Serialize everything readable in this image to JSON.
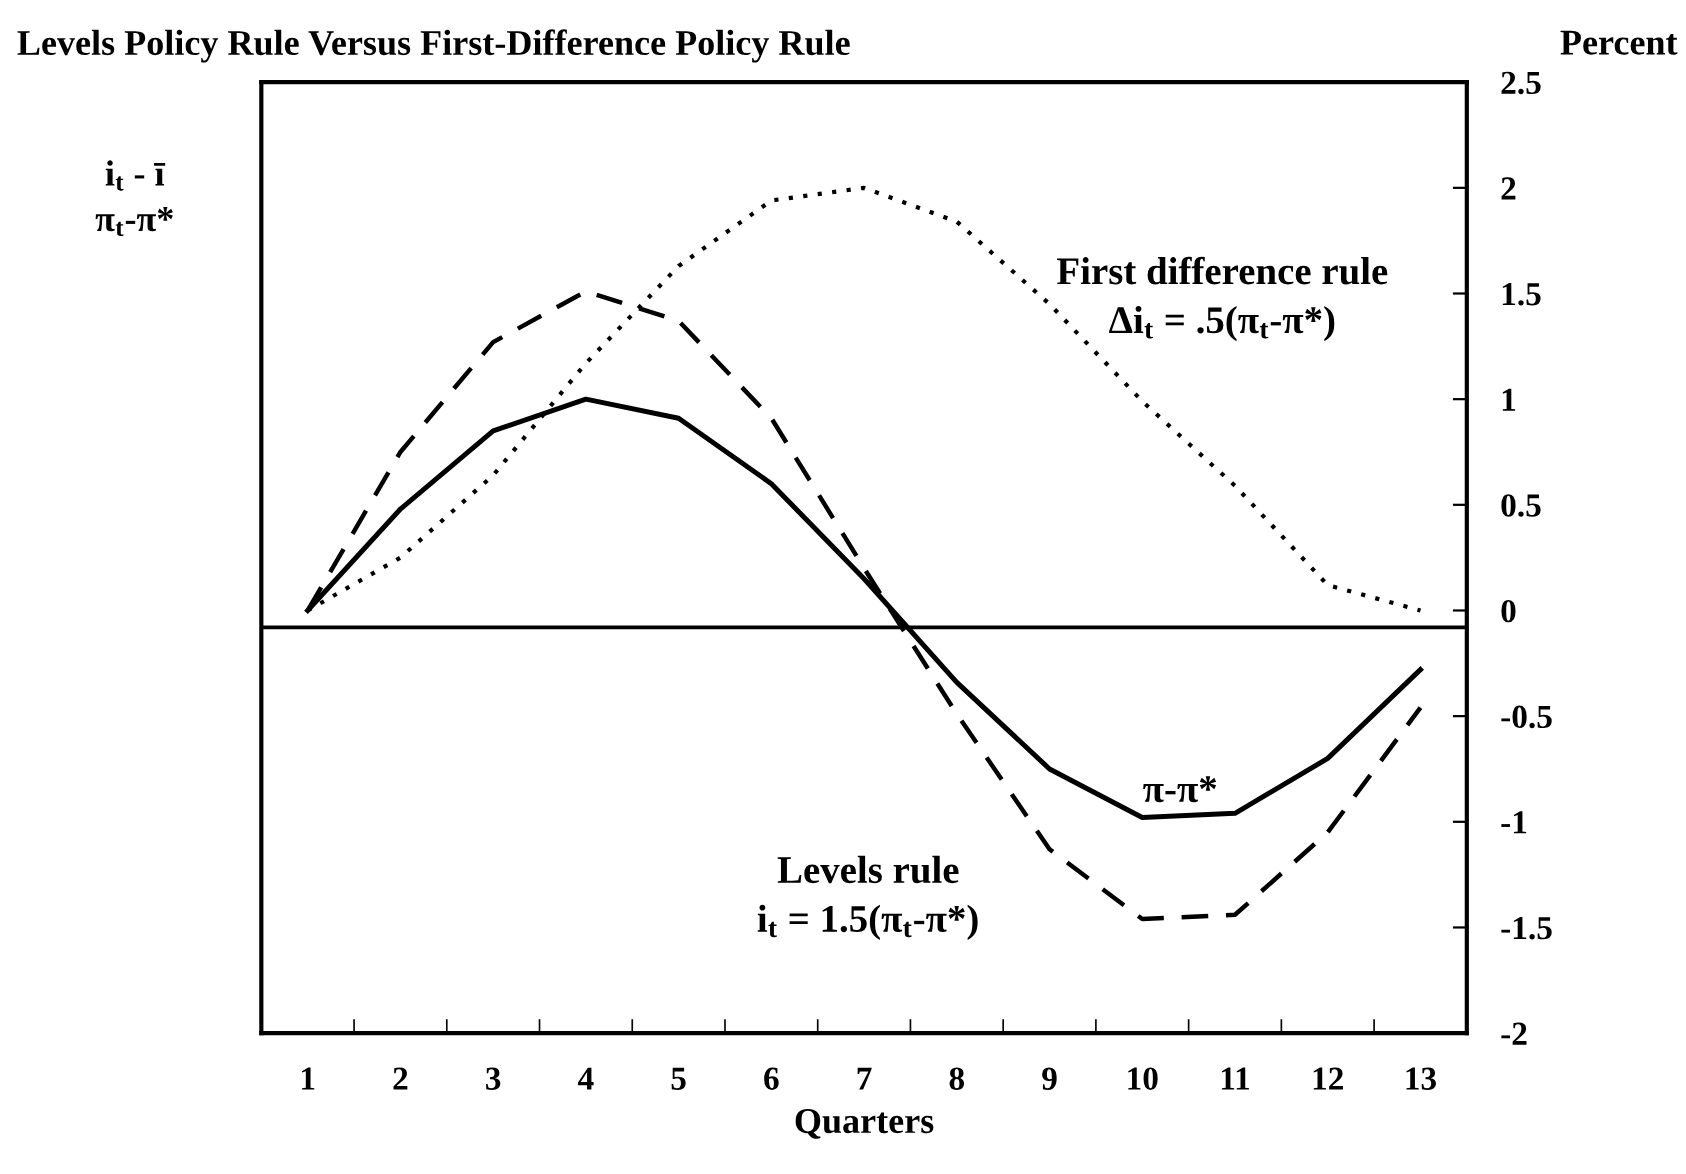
{
  "chart_data": {
    "type": "line",
    "title": "Levels Policy Rule Versus First-Difference Policy Rule",
    "xlabel": "Quarters",
    "ylabel": "Percent",
    "categories": [
      "1",
      "2",
      "3",
      "4",
      "5",
      "6",
      "7",
      "8",
      "9",
      "10",
      "11",
      "12",
      "13"
    ],
    "series": [
      {
        "color": "#000000",
        "line_style": "solid",
        "values": [
          0,
          0.48,
          0.85,
          1.0,
          0.91,
          0.6,
          0.15,
          -0.34,
          -0.75,
          -0.98,
          -0.96,
          -0.7,
          -0.28
        ]
      },
      {
        "color": "#000000",
        "line_style": "dashed",
        "values": [
          0,
          0.75,
          1.27,
          1.51,
          1.37,
          0.91,
          0.2,
          -0.49,
          -1.13,
          -1.46,
          -1.44,
          -1.05,
          -0.46
        ]
      },
      {
        "color": "#000000",
        "line_style": "dotted",
        "values": [
          0,
          0.25,
          0.64,
          1.17,
          1.63,
          1.94,
          2.0,
          1.84,
          1.45,
          0.99,
          0.59,
          0.12,
          0
        ]
      }
    ],
    "ylim": [
      -2,
      2.5
    ],
    "yticks": [
      -2,
      -1.5,
      -1,
      -0.5,
      0,
      0.5,
      1,
      1.5,
      2,
      2.5
    ],
    "ref_lines": [
      {
        "axis": "y",
        "value": -0.08,
        "color": "#000000",
        "line_style": "solid"
      }
    ],
    "annotations": [
      "i$_{t}$ - ī\nπ$_{t}$-π*",
      "First difference rule\nΔi$_{t}$ = .5(π$_{t}$-π*)",
      "π-π*",
      "Levels rule\ni$_{t}$ = 1.5(π$_{t}$-π*)"
    ],
    "grid": false,
    "legend": false,
    "marker": "none"
  }
}
